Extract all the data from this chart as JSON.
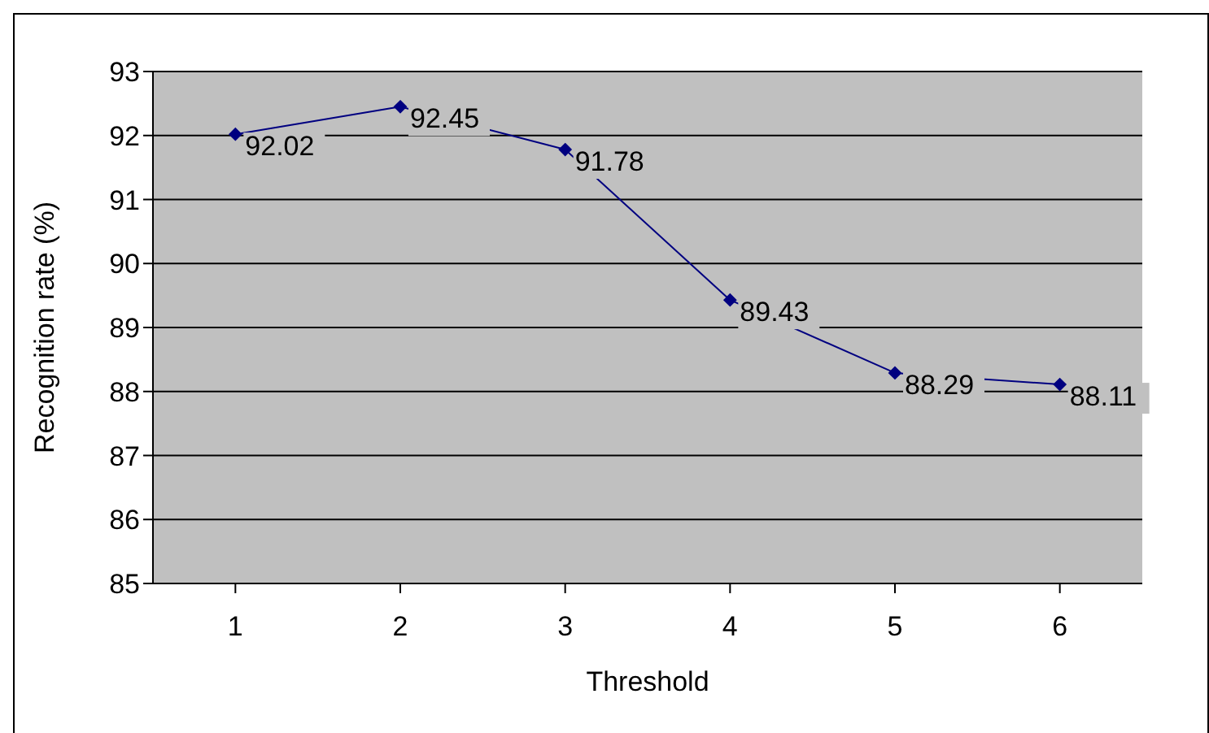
{
  "chart_data": {
    "type": "line",
    "xlabel": "Threshold",
    "ylabel": "Recognition rate (%)",
    "categories": [
      "1",
      "2",
      "3",
      "4",
      "5",
      "6"
    ],
    "series": [
      {
        "color": "#000080",
        "values": [
          92.02,
          92.45,
          91.78,
          89.43,
          88.29,
          88.11
        ]
      }
    ],
    "ylim": [
      85,
      93
    ],
    "yticks": [
      85,
      86,
      87,
      88,
      89,
      90,
      91,
      92,
      93
    ],
    "grid": "y",
    "legend": false,
    "marker": "diamond",
    "line_style": "solid",
    "data_labels": true
  }
}
